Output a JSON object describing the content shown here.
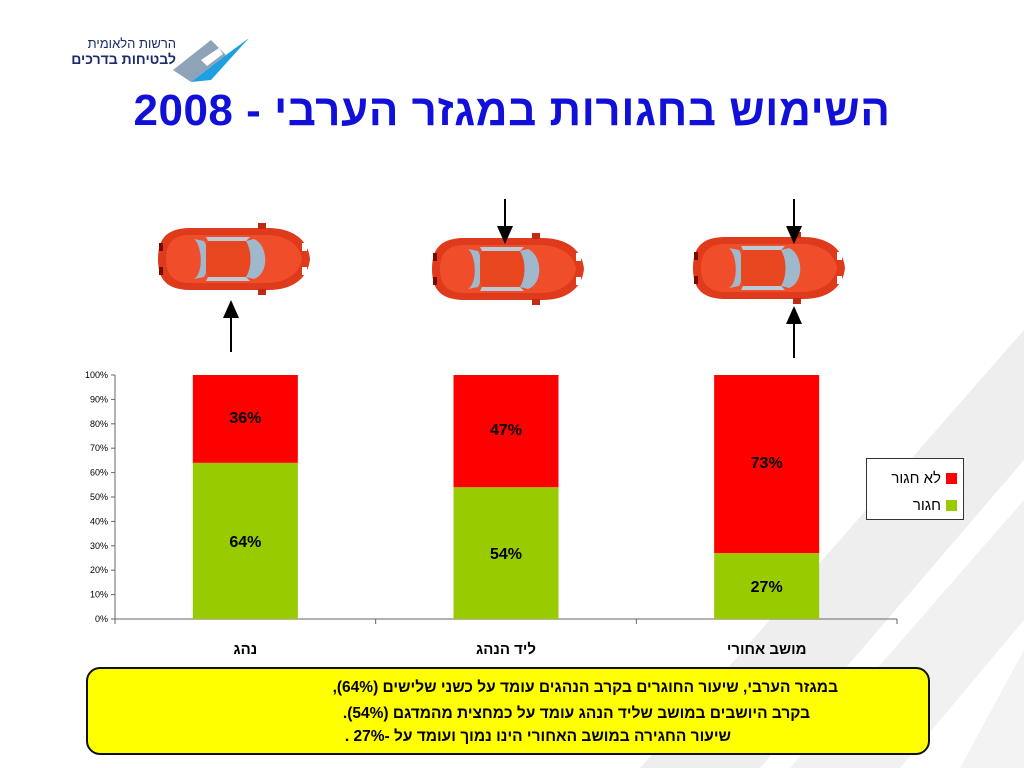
{
  "logo": {
    "line1": "הרשות הלאומית",
    "line2": "לבטיחות בדרכים"
  },
  "title": "השימוש בחגורות במגזר הערבי - 2008",
  "chart_data": {
    "type": "bar",
    "stacked": true,
    "percent": true,
    "categories": [
      "נהג",
      "ליד הנהג",
      "מושב אחורי"
    ],
    "series": [
      {
        "name": "חגור",
        "values": [
          64,
          54,
          27
        ],
        "color": "#99cc00",
        "labels": [
          "64%",
          "54%",
          "27%"
        ]
      },
      {
        "name": "לא חגור",
        "values": [
          36,
          47,
          73
        ],
        "color": "#ff0000",
        "labels": [
          "36%",
          "47%",
          "73%"
        ]
      }
    ],
    "y_ticks": [
      "0%",
      "10%",
      "20%",
      "30%",
      "40%",
      "50%",
      "60%",
      "70%",
      "80%",
      "90%",
      "100%"
    ],
    "ylim": [
      0,
      100
    ],
    "legend_position": "right",
    "grid": false
  },
  "legend": {
    "items": [
      {
        "label": "לא חגור",
        "color": "#ff0000"
      },
      {
        "label": "חגור",
        "color": "#99cc00"
      }
    ]
  },
  "note": {
    "lines": [
      "במגזר הערבי, שיעור החוגרים בקרב הנהגים עומד על כשני שלישים (64%),",
      "בקרב היושבים במושב שליד הנהג עומד על כמחצית מהמדגם (54%).",
      "שיעור החגירה במושב האחורי הינו נמוך ועומד על -27% ."
    ]
  }
}
